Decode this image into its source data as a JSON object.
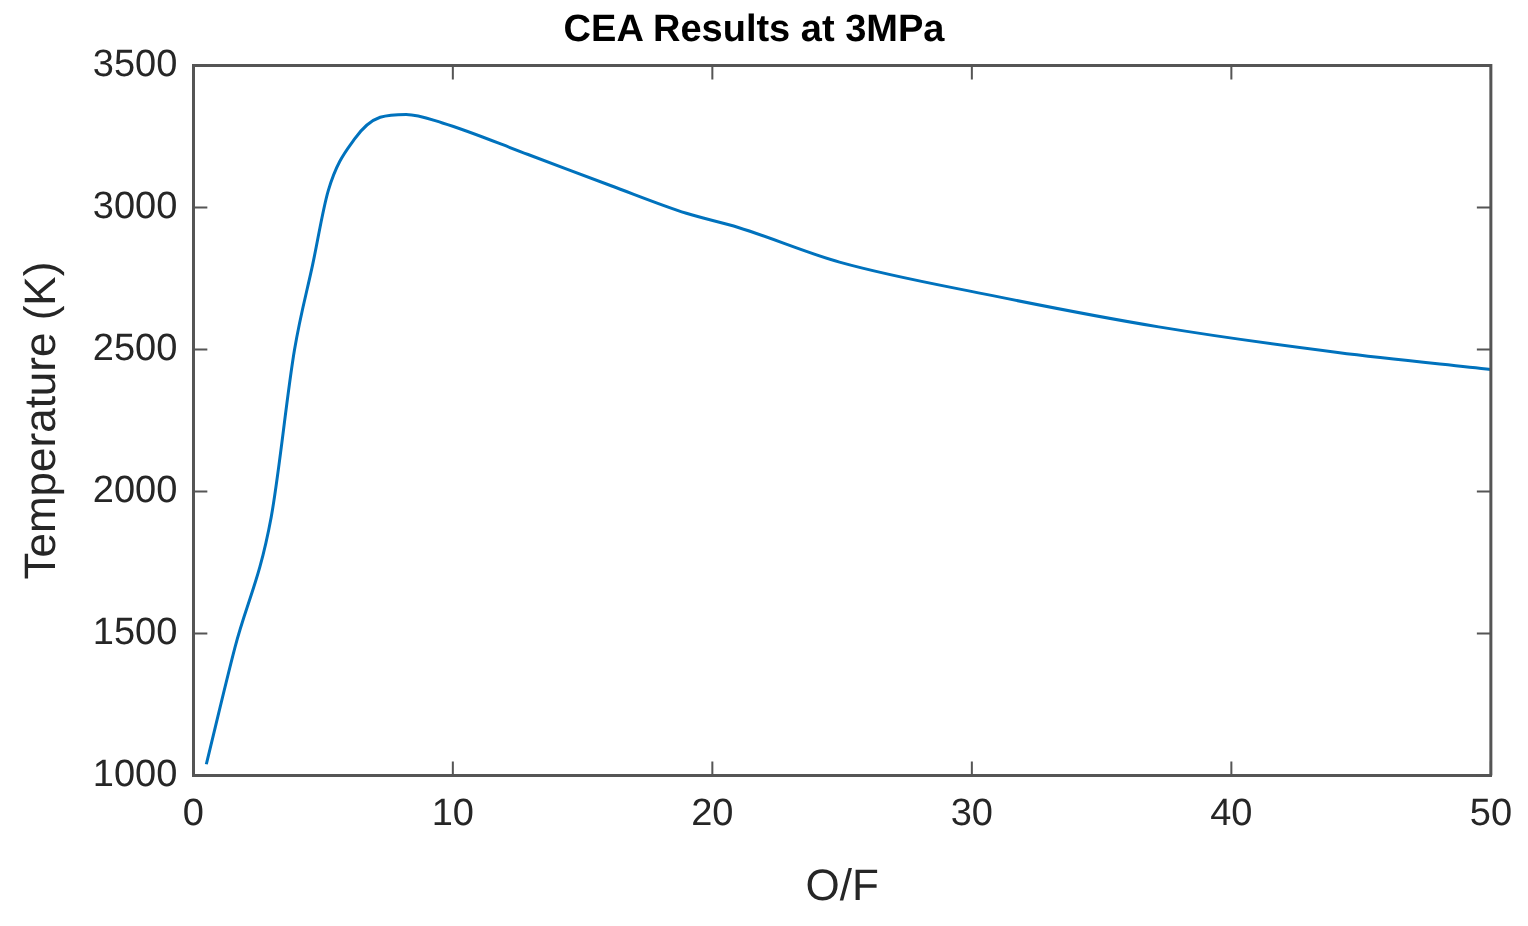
{
  "chart_data": {
    "type": "line",
    "title": "CEA Results at 3MPa",
    "xlabel": "O/F",
    "ylabel": "Temperature (K)",
    "x": [
      0.5,
      1.6,
      3,
      3.9,
      4.6,
      5.2,
      6.2,
      7.2,
      8.2,
      9.6,
      12.9,
      16.1,
      19,
      21,
      24.9,
      30.8,
      37.2,
      44.1,
      50
    ],
    "series": [
      {
        "color": "#0072bd",
        "values": [
          1040,
          1450,
          1910,
          2500,
          2800,
          3060,
          3240,
          3318,
          3328,
          3298,
          3187,
          3077,
          2980,
          2930,
          2808,
          2690,
          2580,
          2490,
          2430
        ]
      }
    ],
    "xlim": [
      0,
      50
    ],
    "xticks": [
      0,
      10,
      20,
      30,
      40,
      50
    ],
    "ylim": [
      1000,
      3500
    ],
    "yticks": [
      1000,
      1500,
      2000,
      2500,
      3000,
      3500
    ],
    "grid": false,
    "legend": false,
    "marker": "none",
    "line_style": "solid"
  }
}
